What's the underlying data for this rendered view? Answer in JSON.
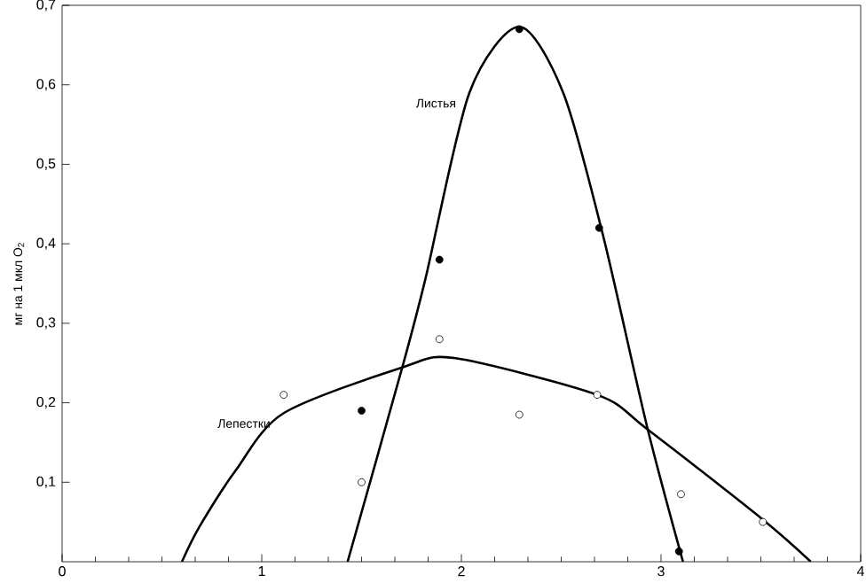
{
  "chart_data": {
    "type": "scatter",
    "ylabel": "мг на 1 мкл O$_{2}$",
    "xlim": [
      0,
      4
    ],
    "ylim": [
      0,
      0.7
    ],
    "xticks": [
      0,
      1,
      2,
      3,
      4
    ],
    "yticks": [
      {
        "value": 0.1,
        "label": "0,1"
      },
      {
        "value": 0.2,
        "label": "0,2"
      },
      {
        "value": 0.3,
        "label": "0,3"
      },
      {
        "value": 0.4,
        "label": "0,4"
      },
      {
        "value": 0.5,
        "label": "0,5"
      },
      {
        "value": 0.6,
        "label": "0,6"
      },
      {
        "value": 0.7,
        "label": "0,7"
      }
    ],
    "grid": false,
    "series": [
      {
        "marker": "circle",
        "color": "#000000",
        "x": [
          1.5,
          1.89,
          2.29,
          2.69,
          3.09
        ],
        "values": [
          0.19,
          0.38,
          0.67,
          0.42,
          0.013
        ]
      },
      {
        "marker": "circle",
        "color": "#ffffff",
        "x": [
          1.11,
          1.5,
          1.89,
          2.29,
          2.68,
          3.1,
          3.51
        ],
        "values": [
          0.21,
          0.1,
          0.28,
          0.185,
          0.21,
          0.085,
          0.05
        ]
      },
      {
        "type": "line",
        "marker": "none",
        "name": "Листья",
        "color": "#000000",
        "x": [
          1.43,
          1.71,
          1.82,
          2.04,
          2.29,
          2.51,
          2.71,
          2.93,
          3.11
        ],
        "values": [
          0,
          0.25,
          0.356,
          0.59,
          0.673,
          0.59,
          0.41,
          0.17,
          0
        ]
      },
      {
        "type": "line",
        "marker": "none",
        "name": "Лепестки",
        "color": "#000000",
        "x": [
          0.6,
          0.69,
          0.87,
          1.11,
          1.71,
          1.97,
          2.68,
          2.93,
          3.51,
          3.75
        ],
        "values": [
          0,
          0.045,
          0.115,
          0.187,
          0.245,
          0.256,
          0.21,
          0.167,
          0.053,
          0
        ]
      }
    ]
  }
}
